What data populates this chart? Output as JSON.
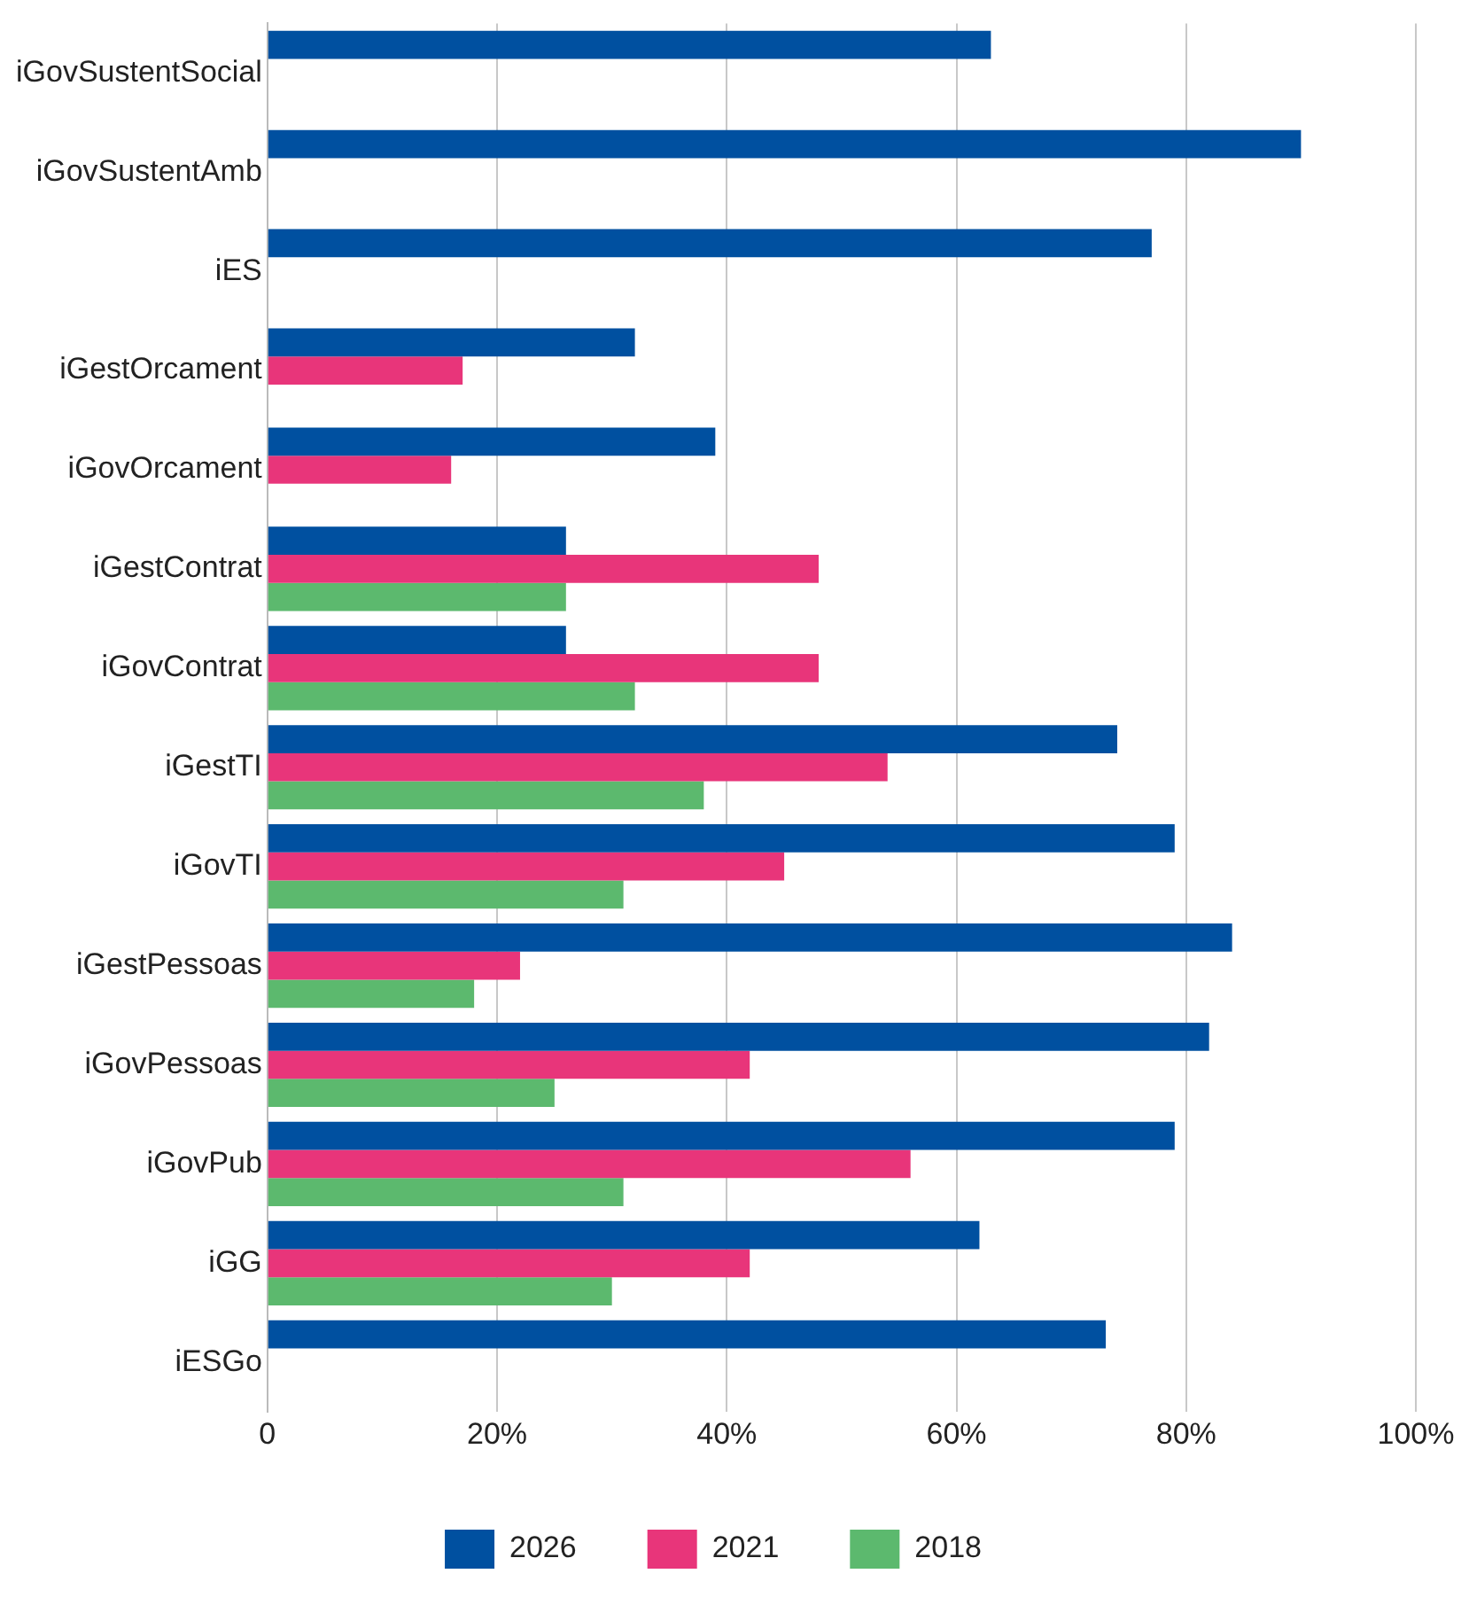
{
  "chart_data": {
    "type": "bar",
    "orientation": "horizontal",
    "categories": [
      "iGovSustentSocial",
      "iGovSustentAmb",
      "iES",
      "iGestOrcament",
      "iGovOrcament",
      "iGestContrat",
      "iGovContrat",
      "iGestTI",
      "iGovTI",
      "iGestPessoas",
      "iGovPessoas",
      "iGovPub",
      "iGG",
      "iESGo"
    ],
    "series": [
      {
        "name": "2026",
        "color": "#0050a0",
        "values": [
          63,
          90,
          77,
          32,
          39,
          26,
          26,
          74,
          79,
          84,
          82,
          79,
          62,
          73
        ]
      },
      {
        "name": "2021",
        "color": "#e8357a",
        "values": [
          null,
          null,
          null,
          17,
          16,
          48,
          48,
          54,
          45,
          22,
          42,
          56,
          42,
          null
        ]
      },
      {
        "name": "2018",
        "color": "#5cb96e",
        "values": [
          null,
          null,
          null,
          null,
          null,
          26,
          32,
          38,
          31,
          18,
          25,
          31,
          30,
          null
        ]
      }
    ],
    "xlim": [
      0,
      100
    ],
    "xticks": [
      0,
      {
        "value": 20,
        "label": "20%"
      },
      {
        "value": 40,
        "label": "40%"
      },
      {
        "value": 60,
        "label": "60%"
      },
      {
        "value": 80,
        "label": "80%"
      },
      {
        "value": 100,
        "label": "100%"
      }
    ],
    "grid": "x",
    "legend": "bottom"
  }
}
